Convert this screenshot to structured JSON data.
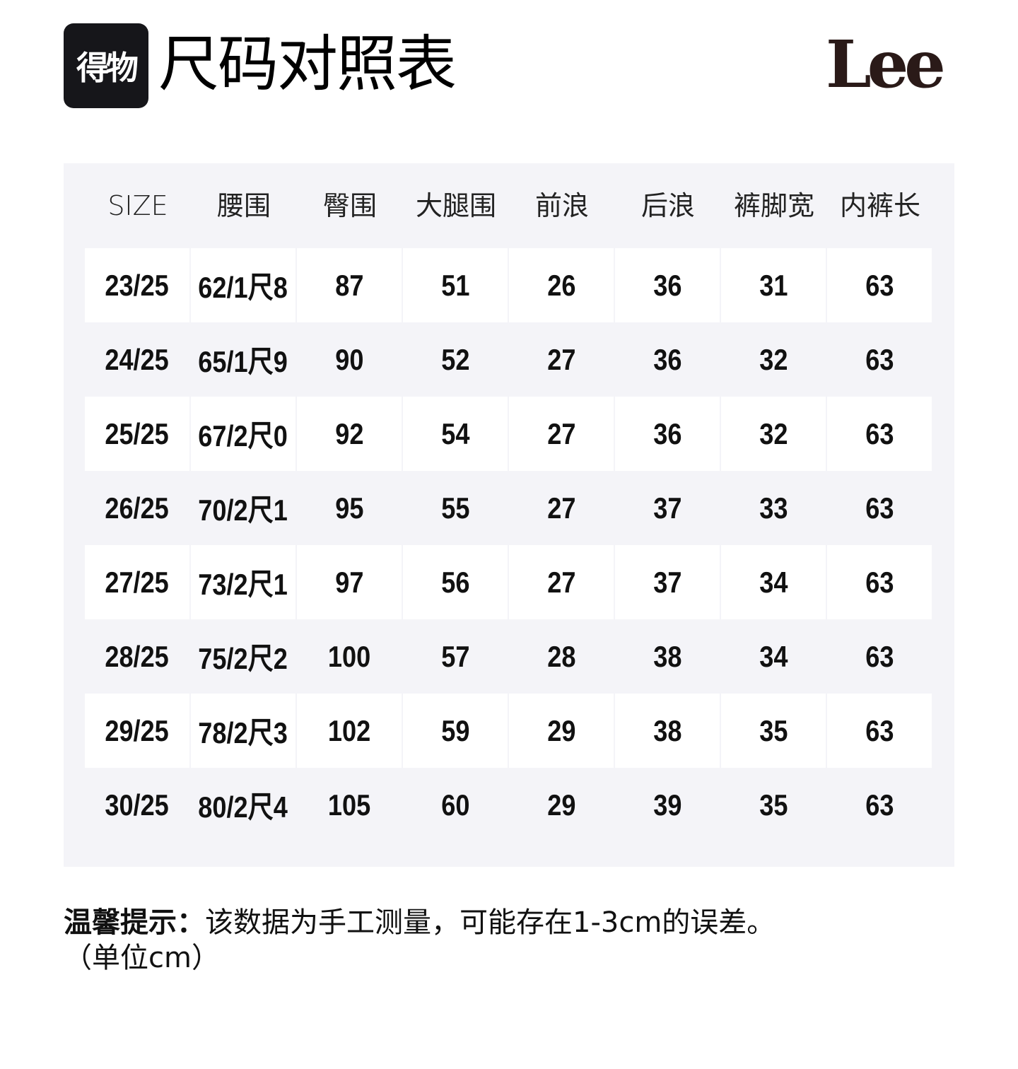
{
  "header": {
    "badge_text": "得物",
    "title": "尺码对照表",
    "brand_logo": "Lee"
  },
  "table": {
    "columns": [
      "SIZE",
      "腰围",
      "臀围",
      "大腿围",
      "前浪",
      "后浪",
      "裤脚宽",
      "内裤长"
    ],
    "rows": [
      [
        "23/25",
        "62/1尺8",
        "87",
        "51",
        "26",
        "36",
        "31",
        "63"
      ],
      [
        "24/25",
        "65/1尺9",
        "90",
        "52",
        "27",
        "36",
        "32",
        "63"
      ],
      [
        "25/25",
        "67/2尺0",
        "92",
        "54",
        "27",
        "36",
        "32",
        "63"
      ],
      [
        "26/25",
        "70/2尺1",
        "95",
        "55",
        "27",
        "37",
        "33",
        "63"
      ],
      [
        "27/25",
        "73/2尺1",
        "97",
        "56",
        "27",
        "37",
        "34",
        "63"
      ],
      [
        "28/25",
        "75/2尺2",
        "100",
        "57",
        "28",
        "38",
        "34",
        "63"
      ],
      [
        "29/25",
        "78/2尺3",
        "102",
        "59",
        "29",
        "38",
        "35",
        "63"
      ],
      [
        "30/25",
        "80/2尺4",
        "105",
        "60",
        "29",
        "39",
        "35",
        "63"
      ]
    ]
  },
  "note": {
    "label": "温馨提示：",
    "text": "该数据为手工测量，可能存在1-3cm的误差。",
    "unit": "（单位cm）"
  },
  "colors": {
    "panel_bg": "#f4f4f8",
    "badge_bg": "#16161a",
    "logo": "#2a1a18"
  }
}
